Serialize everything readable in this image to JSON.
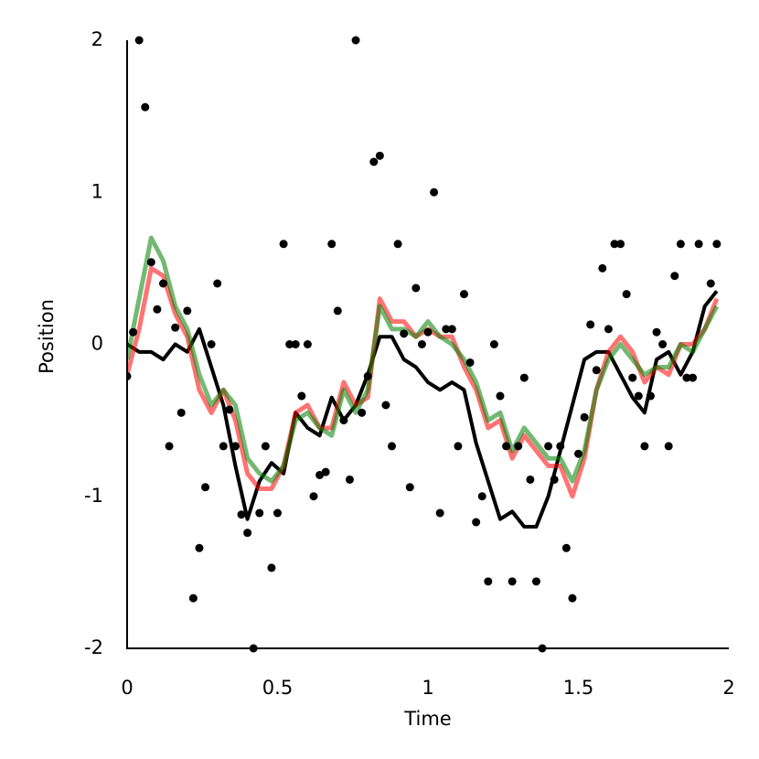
{
  "chart_data": {
    "type": "line",
    "xlabel": "Time",
    "ylabel": "Position",
    "xlim": [
      0,
      2
    ],
    "xticks": [
      0,
      0.5,
      1,
      1.5,
      2
    ],
    "ylim": [
      -2,
      2
    ],
    "yticks": [
      -2,
      -1,
      0,
      1,
      2
    ],
    "x": [
      0,
      0.04,
      0.08,
      0.12,
      0.16,
      0.2,
      0.24,
      0.28,
      0.32,
      0.36,
      0.4,
      0.44,
      0.48,
      0.52,
      0.56,
      0.6,
      0.64,
      0.68,
      0.72,
      0.76,
      0.8,
      0.84,
      0.88,
      0.92,
      0.96,
      1.0,
      1.04,
      1.08,
      1.12,
      1.16,
      1.2,
      1.24,
      1.28,
      1.32,
      1.36,
      1.4,
      1.44,
      1.48,
      1.52,
      1.56,
      1.6,
      1.64,
      1.68,
      1.72,
      1.76,
      1.8,
      1.84,
      1.88,
      1.92,
      1.96
    ],
    "series": [
      {
        "type": "line",
        "color": "#000000",
        "opacity": 1,
        "width": 4,
        "values": [
          0,
          -0.05,
          -0.05,
          -0.1,
          0,
          -0.05,
          0.1,
          -0.15,
          -0.4,
          -0.8,
          -1.15,
          -0.9,
          -0.78,
          -0.85,
          -0.45,
          -0.55,
          -0.6,
          -0.35,
          -0.5,
          -0.4,
          -0.2,
          0.05,
          0.05,
          -0.1,
          -0.15,
          -0.25,
          -0.3,
          -0.25,
          -0.3,
          -0.65,
          -0.9,
          -1.15,
          -1.1,
          -1.2,
          -1.2,
          -1.0,
          -0.7,
          -0.4,
          -0.1,
          -0.05,
          -0.05,
          -0.2,
          -0.35,
          -0.45,
          -0.1,
          -0.05,
          -0.2,
          -0.05,
          0.25,
          0.35
        ]
      },
      {
        "type": "line",
        "color": "#ff0000",
        "opacity": 0.55,
        "width": 5,
        "values": [
          -0.2,
          0.1,
          0.5,
          0.45,
          0.2,
          0.05,
          -0.3,
          -0.45,
          -0.3,
          -0.5,
          -0.85,
          -0.95,
          -0.95,
          -0.8,
          -0.45,
          -0.4,
          -0.55,
          -0.55,
          -0.25,
          -0.4,
          -0.35,
          0.3,
          0.15,
          0.15,
          0.05,
          0.1,
          0.05,
          0.05,
          -0.15,
          -0.3,
          -0.55,
          -0.5,
          -0.75,
          -0.6,
          -0.7,
          -0.8,
          -0.8,
          -1.0,
          -0.75,
          -0.3,
          -0.05,
          0.05,
          -0.05,
          -0.25,
          -0.15,
          -0.2,
          0,
          0,
          0.1,
          0.3
        ]
      },
      {
        "type": "line",
        "color": "#008000",
        "opacity": 0.55,
        "width": 5,
        "values": [
          -0.1,
          0.3,
          0.7,
          0.55,
          0.25,
          0.1,
          -0.2,
          -0.4,
          -0.3,
          -0.4,
          -0.75,
          -0.85,
          -0.9,
          -0.8,
          -0.5,
          -0.45,
          -0.55,
          -0.6,
          -0.3,
          -0.45,
          -0.3,
          0.25,
          0.1,
          0.1,
          0.05,
          0.15,
          0.05,
          0,
          -0.1,
          -0.25,
          -0.5,
          -0.45,
          -0.7,
          -0.55,
          -0.65,
          -0.75,
          -0.75,
          -0.9,
          -0.7,
          -0.3,
          -0.1,
          0,
          -0.1,
          -0.2,
          -0.15,
          -0.15,
          0,
          -0.05,
          0.1,
          0.25
        ]
      },
      {
        "type": "scatter",
        "color": "#000000",
        "x": [
          0,
          0.02,
          0.04,
          0.06,
          0.08,
          0.1,
          0.12,
          0.14,
          0.16,
          0.18,
          0.2,
          0.22,
          0.24,
          0.26,
          0.28,
          0.3,
          0.32,
          0.34,
          0.36,
          0.38,
          0.4,
          0.42,
          0.44,
          0.46,
          0.48,
          0.5,
          0.52,
          0.54,
          0.56,
          0.58,
          0.6,
          0.62,
          0.64,
          0.66,
          0.68,
          0.7,
          0.72,
          0.74,
          0.76,
          0.78,
          0.8,
          0.82,
          0.84,
          0.86,
          0.88,
          0.9,
          0.92,
          0.94,
          0.96,
          0.98,
          1.0,
          1.02,
          1.04,
          1.06,
          1.08,
          1.1,
          1.12,
          1.14,
          1.16,
          1.18,
          1.2,
          1.22,
          1.24,
          1.26,
          1.28,
          1.3,
          1.32,
          1.34,
          1.36,
          1.38,
          1.4,
          1.42,
          1.44,
          1.46,
          1.48,
          1.5,
          1.52,
          1.54,
          1.56,
          1.58,
          1.6,
          1.62,
          1.64,
          1.66,
          1.68,
          1.7,
          1.72,
          1.74,
          1.76,
          1.78,
          1.8,
          1.82,
          1.84,
          1.86,
          1.88,
          1.9,
          1.94,
          1.96
        ],
        "values": [
          -0.21,
          0.08,
          2,
          1.56,
          0.54,
          0.23,
          0.4,
          -0.67,
          0.11,
          -0.45,
          0.22,
          -1.67,
          -1.34,
          -0.94,
          0,
          0.4,
          -0.67,
          -0.43,
          -0.67,
          -1.12,
          -1.24,
          -2,
          -1.11,
          -0.67,
          -1.47,
          -1.11,
          0.66,
          0,
          0,
          -0.34,
          0,
          -1.0,
          -0.86,
          -0.84,
          0.66,
          0.22,
          -0.5,
          -0.89,
          2,
          -0.45,
          -0.21,
          1.2,
          1.24,
          -0.4,
          -0.67,
          0.66,
          0.07,
          -0.94,
          0.37,
          0,
          0.08,
          1.0,
          -1.11,
          0.1,
          0.1,
          -0.67,
          0.33,
          -0.12,
          -1.17,
          -1.0,
          -1.56,
          0,
          -0.34,
          -0.67,
          -1.56,
          -0.67,
          -0.22,
          -0.89,
          -1.56,
          -2,
          -0.67,
          -0.89,
          -0.67,
          -1.34,
          -1.67,
          -0.72,
          -0.48,
          0.13,
          -0.17,
          0.5,
          0.1,
          0.66,
          0.66,
          0.33,
          -0.22,
          -0.34,
          -0.67,
          -0.34,
          0.08,
          0,
          -0.67,
          0.45,
          0.66,
          -0.22,
          -0.22,
          0.66,
          0.4,
          0.66
        ]
      }
    ]
  }
}
